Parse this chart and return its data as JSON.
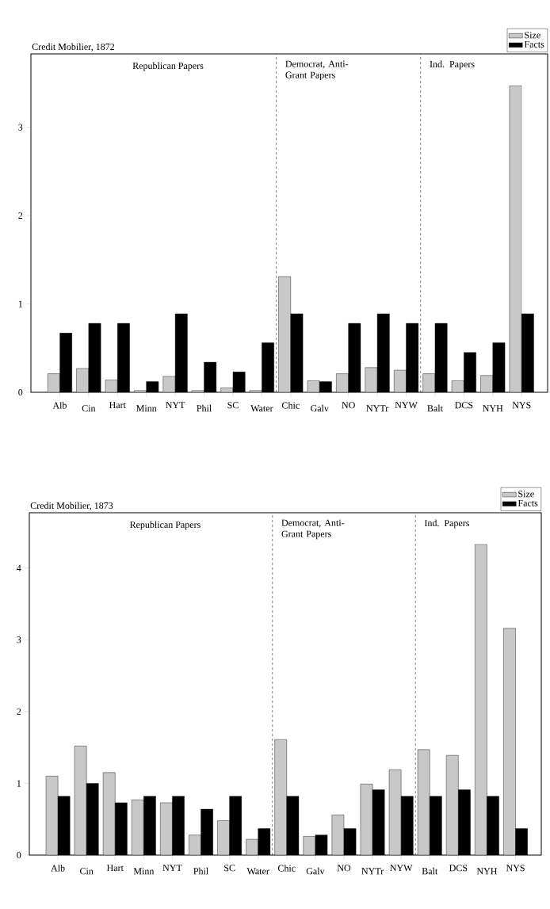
{
  "chart_data": [
    {
      "type": "bar",
      "title": "Credit Mobilier, 1872",
      "categories": [
        "Alb",
        "Cin",
        "Hart",
        "Minn",
        "NYT",
        "Phil",
        "SC",
        "Water",
        "Chic",
        "Galv",
        "NO",
        "NYTr",
        "NYW",
        "Balt",
        "DCS",
        "NYH",
        "NYS"
      ],
      "series": [
        {
          "name": "Size",
          "color": "#c8c8c8",
          "values": [
            0.21,
            0.27,
            0.14,
            0.02,
            0.18,
            0.02,
            0.05,
            0.02,
            1.31,
            0.13,
            0.21,
            0.28,
            0.25,
            0.21,
            0.13,
            0.19,
            3.47
          ]
        },
        {
          "name": "Facts",
          "color": "#000000",
          "values": [
            0.67,
            0.78,
            0.78,
            0.12,
            0.89,
            0.34,
            0.23,
            0.56,
            0.89,
            0.12,
            0.78,
            0.89,
            0.78,
            0.78,
            0.45,
            0.56,
            0.89
          ]
        }
      ],
      "ylim": [
        0,
        3.83
      ],
      "yticks": [
        0,
        1,
        2,
        3
      ],
      "annotations": [
        "Republican Papers",
        "Democrat, Anti-Grant Papers",
        "Ind. Papers"
      ],
      "legend": "top right"
    },
    {
      "type": "bar",
      "title": "Credit Mobilier, 1873",
      "categories": [
        "Alb",
        "Cin",
        "Hart",
        "Minn",
        "NYT",
        "Phil",
        "SC",
        "Water",
        "Chic",
        "Galv",
        "NO",
        "NYTr",
        "NYW",
        "Balt",
        "DCS",
        "NYH",
        "NYS"
      ],
      "series": [
        {
          "name": "Size",
          "color": "#c8c8c8",
          "values": [
            1.1,
            1.52,
            1.15,
            0.77,
            0.73,
            0.28,
            0.48,
            0.22,
            1.61,
            0.26,
            0.56,
            0.99,
            1.19,
            1.47,
            1.39,
            4.33,
            3.16
          ]
        },
        {
          "name": "Facts",
          "color": "#000000",
          "values": [
            0.82,
            1.0,
            0.73,
            0.82,
            0.82,
            0.64,
            0.82,
            0.37,
            0.82,
            0.28,
            0.37,
            0.91,
            0.82,
            0.82,
            0.91,
            0.82,
            0.37
          ]
        }
      ],
      "ylim": [
        0,
        4.77
      ],
      "yticks": [
        0,
        1,
        2,
        3,
        4
      ],
      "annotations": [
        "Republican Papers",
        "Democrat, Anti-Grant Papers",
        "Ind. Papers"
      ],
      "legend": "top right"
    }
  ]
}
